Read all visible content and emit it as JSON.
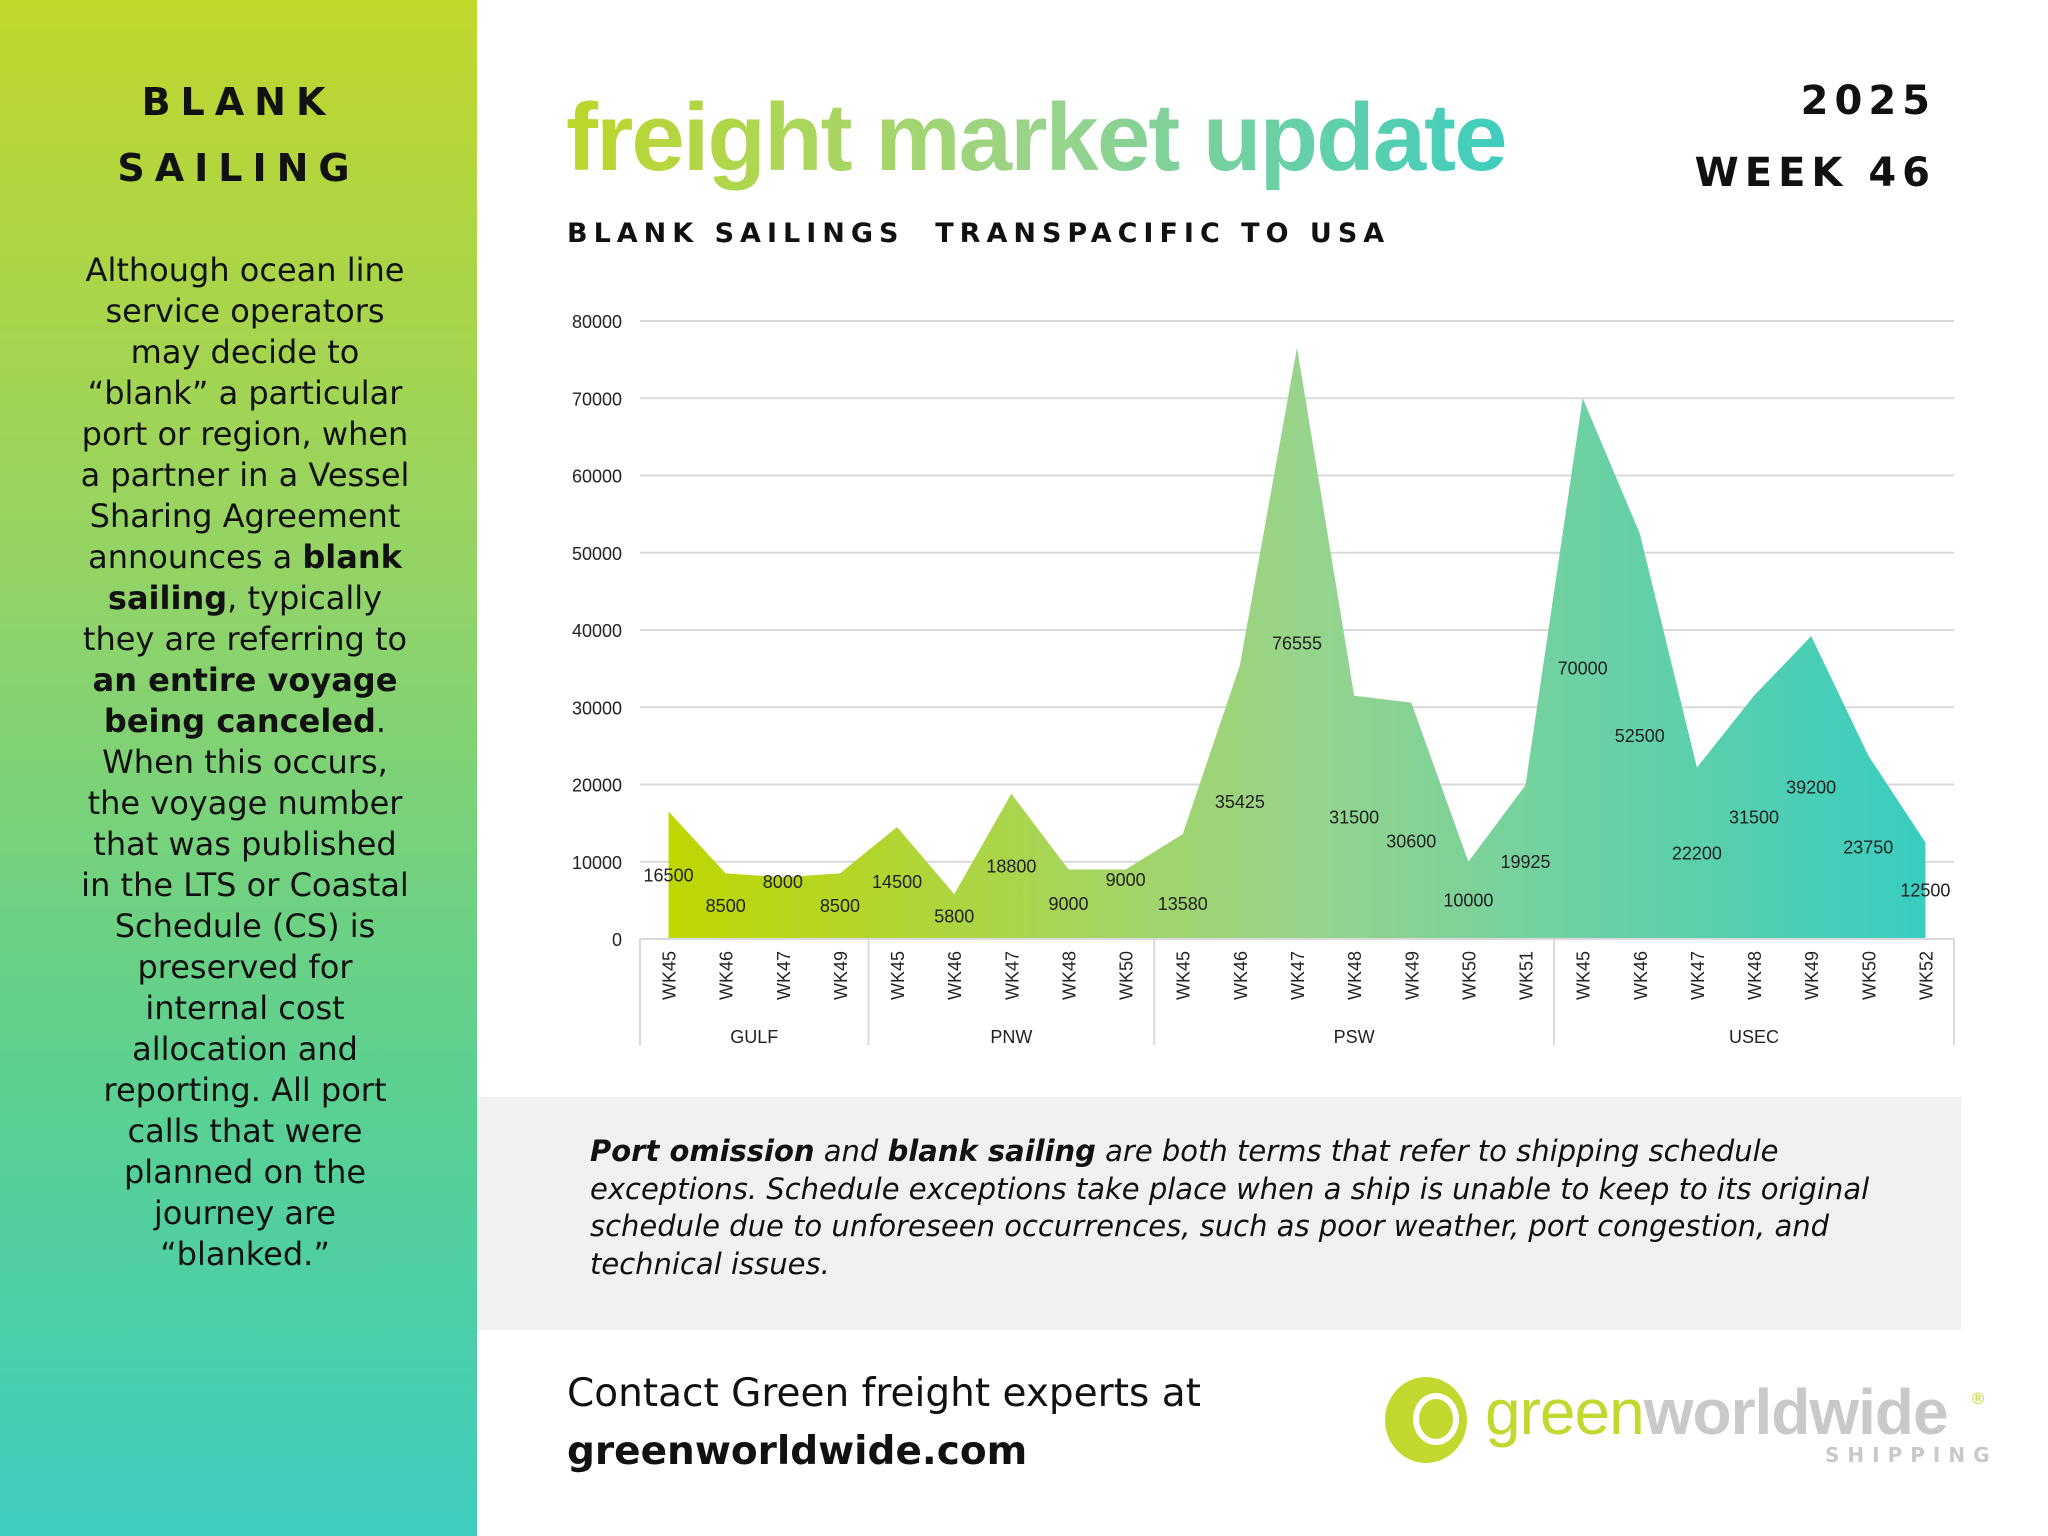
{
  "sidebar": {
    "title_line1": "BLANK",
    "title_line2": "SAILING",
    "body": [
      {
        "text": "Although ocean line service operators may decide to “blank” a particular port or region, when a partner in a Vessel Sharing Agreement announces a ",
        "bold": false
      },
      {
        "text": "blank sailing",
        "bold": true
      },
      {
        "text": ", typically they are referring to ",
        "bold": false
      },
      {
        "text": "an entire voyage being canceled",
        "bold": true
      },
      {
        "text": ". When this occurs, the voyage number that was published in the LTS or Coastal Schedule (CS) is preserved for internal cost allocation and reporting. All port calls that were planned on the journey are “blanked.”",
        "bold": false
      }
    ]
  },
  "header": {
    "title": "freight market update",
    "year": "2025",
    "week": "WEEK 46",
    "subtitle": "BLANK SAILINGS  TRANSPACIFIC TO USA"
  },
  "colors": {
    "gradient_start": "#bfd62a",
    "gradient_mid": "#9ad48a",
    "gradient_end": "#3ecdbf",
    "note_bg": "#f1f1f1"
  },
  "chart_data": {
    "type": "area",
    "title": "BLANK SAILINGS  TRANSPACIFIC TO USA",
    "xlabel": "",
    "ylabel": "",
    "ylim": [
      0,
      80000
    ],
    "yticks": [
      0,
      10000,
      20000,
      30000,
      40000,
      50000,
      60000,
      70000,
      80000
    ],
    "grid": true,
    "groups": [
      {
        "name": "GULF",
        "categories": [
          "WK45",
          "WK46",
          "WK47",
          "WK49"
        ],
        "values": [
          16500,
          8500,
          8000,
          8500
        ]
      },
      {
        "name": "PNW",
        "categories": [
          "WK45",
          "WK46",
          "WK47",
          "WK48",
          "WK50"
        ],
        "values": [
          14500,
          5800,
          18800,
          9000,
          9000
        ]
      },
      {
        "name": "PSW",
        "categories": [
          "WK45",
          "WK46",
          "WK47",
          "WK48",
          "WK49",
          "WK50",
          "WK51"
        ],
        "values": [
          13580,
          35425,
          76555,
          31500,
          30600,
          10000,
          19925
        ]
      },
      {
        "name": "USEC",
        "categories": [
          "WK45",
          "WK46",
          "WK47",
          "WK48",
          "WK49",
          "WK50",
          "WK52"
        ],
        "values": [
          70000,
          52500,
          22200,
          31500,
          39200,
          23750,
          12500
        ]
      }
    ]
  },
  "note": {
    "segments": [
      {
        "text": "Port omission",
        "bold": true
      },
      {
        "text": " and ",
        "bold": false
      },
      {
        "text": "blank sailing",
        "bold": true
      },
      {
        "text": " are both terms that refer to shipping schedule exceptions. Schedule exceptions take place when a ship is unable to keep to its original schedule due to unforeseen occurrences, such as poor weather, port congestion, and technical issues.",
        "bold": false
      }
    ]
  },
  "contact": {
    "line1": "Contact Green freight experts at",
    "url": "greenworldwide.com"
  },
  "logo": {
    "green": "green",
    "gray": "worldwide",
    "sub": "SHIPPING",
    "reg": "®"
  }
}
